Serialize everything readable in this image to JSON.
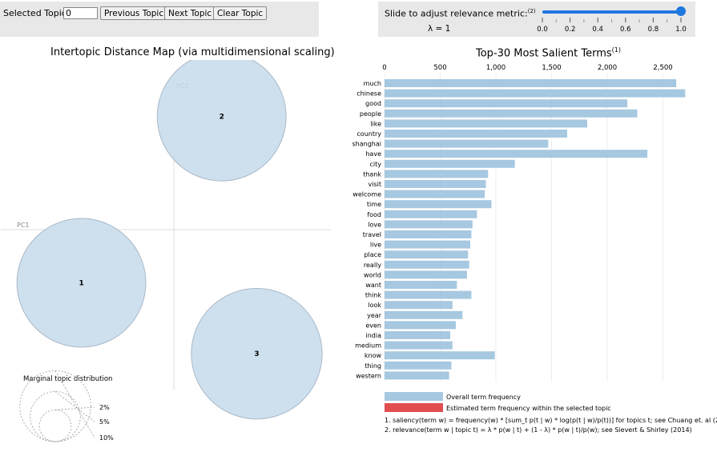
{
  "controls": {
    "selected_topic_label": "Selected Topic:",
    "selected_topic_value": "0",
    "previous_label": "Previous Topic",
    "next_label": "Next Topic",
    "clear_label": "Clear Topic",
    "slider_label": "Slide to adjust relevance metric:",
    "slider_footnote": "(2)",
    "lambda_text": "λ = 1",
    "slider_ticks": [
      "0.0",
      "0.2",
      "0.4",
      "0.6",
      "0.8",
      "1.0"
    ],
    "slider_value": 1.0
  },
  "colors": {
    "bar": "#a6c8e0",
    "bubble_fill": "#c6dbea",
    "bubble_stroke": "#a9b8c8",
    "selected_bar": "#e04e50",
    "slider": "#1f77e0",
    "panel_bg": "#e8e8e8"
  },
  "chart_data": [
    {
      "type": "scatter",
      "title": "Intertopic Distance Map (via multidimensional scaling)",
      "xlabel": "PC1",
      "ylabel": "PC2",
      "points": [
        {
          "label": "1",
          "pc1": -0.29,
          "pc2": -0.24,
          "size_pct": 33
        },
        {
          "label": "2",
          "pc1": 0.15,
          "pc2": 0.51,
          "size_pct": 33
        },
        {
          "label": "3",
          "pc1": 0.26,
          "pc2": -0.56,
          "size_pct": 34
        }
      ],
      "legend": {
        "title": "Marginal topic distribution",
        "entries": [
          {
            "label": "2%",
            "pct": 2
          },
          {
            "label": "5%",
            "pct": 5
          },
          {
            "label": "10%",
            "pct": 10
          }
        ]
      }
    },
    {
      "type": "bar",
      "title": "Top-30 Most Salient Terms",
      "title_sup": "(1)",
      "xlim": [
        0,
        2700
      ],
      "xticks": [
        0,
        500,
        1000,
        1500,
        2000,
        2500
      ],
      "xtick_labels": [
        "0",
        "500",
        "1,000",
        "1,500",
        "2,000",
        "2,500"
      ],
      "categories": [
        "much",
        "chinese",
        "good",
        "people",
        "like",
        "country",
        "shanghai",
        "have",
        "city",
        "thank",
        "visit",
        "welcome",
        "time",
        "food",
        "love",
        "travel",
        "live",
        "place",
        "really",
        "world",
        "want",
        "think",
        "look",
        "year",
        "even",
        "india",
        "medium",
        "know",
        "thing",
        "western"
      ],
      "values": [
        2620,
        2700,
        2180,
        2270,
        1820,
        1640,
        1470,
        2360,
        1170,
        930,
        910,
        900,
        960,
        830,
        790,
        780,
        770,
        750,
        760,
        740,
        650,
        780,
        610,
        700,
        640,
        590,
        610,
        990,
        600,
        580
      ],
      "legend": [
        {
          "label": "Overall term frequency",
          "color": "#a6c8e0"
        },
        {
          "label": "Estimated term frequency within the selected topic",
          "color": "#e04e50"
        }
      ],
      "footnotes": [
        "1. saliency(term w) = frequency(w) * [sum_t p(t | w) * log(p(t | w)/p(t))] for topics t; see Chuang et. al (2012)",
        "2. relevance(term w | topic t) = λ * p(w | t) + (1 - λ) * p(w | t)/p(w); see Sievert & Shirley (2014)"
      ]
    }
  ]
}
